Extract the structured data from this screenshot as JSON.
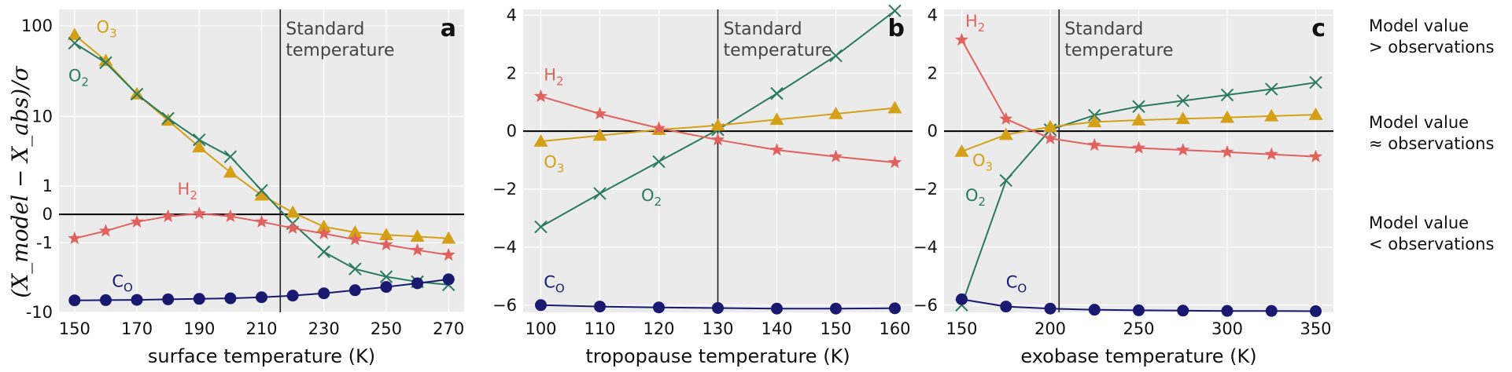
{
  "colors": {
    "H2": "#e0625f",
    "O3": "#d4a017",
    "O2": "#2a7a5e",
    "CO": "#191970",
    "background": "#ebebeb",
    "grid": "#ffffff"
  },
  "ylabel": "(X_model − X_abs)/σ",
  "reference_line_label": [
    "Standard",
    "temperature"
  ],
  "side_notes": [
    {
      "lines": [
        "Model value",
        ">  observations"
      ]
    },
    {
      "lines": [
        "Model value",
        "≈ observations"
      ]
    },
    {
      "lines": [
        "Model value",
        "< observations"
      ]
    }
  ],
  "chart_data": [
    {
      "panel": "a",
      "type": "line",
      "xlabel": "surface temperature (K)",
      "xlim": [
        145,
        275
      ],
      "xticks": [
        150,
        170,
        190,
        210,
        230,
        250,
        270
      ],
      "yscale": "symlog",
      "ylim": [
        -10,
        150
      ],
      "yticks": [
        {
          "v": 100,
          "label": "100"
        },
        {
          "v": 10,
          "label": "10"
        },
        {
          "v": 1,
          "label": "1"
        },
        {
          "v": 0,
          "label": "0"
        },
        {
          "v": -1,
          "label": "-1"
        },
        {
          "v": -10,
          "label": "-10"
        }
      ],
      "reference_x": 216,
      "series": [
        {
          "name": "O3",
          "marker": "triangle",
          "x": [
            150,
            160,
            170,
            180,
            190,
            200,
            210,
            220,
            230,
            240,
            250,
            260,
            270
          ],
          "y": [
            80,
            42,
            18,
            9,
            4.2,
            1.8,
            0.6,
            0.05,
            -0.35,
            -0.55,
            -0.65,
            -0.72,
            -0.8
          ]
        },
        {
          "name": "O2",
          "marker": "cross",
          "x": [
            150,
            160,
            170,
            180,
            190,
            200,
            210,
            220,
            230,
            240,
            250,
            260,
            270
          ],
          "y": [
            65,
            40,
            18,
            9.5,
            5.2,
            3.1,
            0.8,
            -0.25,
            -1.5,
            -2.8,
            -3.6,
            -4.2,
            -4.6
          ]
        },
        {
          "name": "H2",
          "marker": "star",
          "x": [
            150,
            160,
            170,
            180,
            190,
            200,
            210,
            220,
            230,
            240,
            250,
            260,
            270
          ],
          "y": [
            -0.8,
            -0.5,
            -0.2,
            -0.05,
            0.02,
            -0.05,
            -0.2,
            -0.4,
            -0.6,
            -0.85,
            -1.1,
            -1.4,
            -1.7
          ]
        },
        {
          "name": "CO",
          "marker": "circle",
          "x": [
            150,
            160,
            170,
            180,
            190,
            200,
            210,
            220,
            230,
            240,
            250,
            260,
            270
          ],
          "y": [
            -7.2,
            -7.15,
            -7.1,
            -7.0,
            -6.9,
            -6.8,
            -6.6,
            -6.3,
            -5.9,
            -5.4,
            -4.9,
            -4.4,
            -3.9
          ]
        }
      ],
      "labels": [
        {
          "text": "O3",
          "series": "O3",
          "x": 157,
          "y": 85
        },
        {
          "text": "O2",
          "series": "O2",
          "x": 148,
          "y": 25
        },
        {
          "text": "H2",
          "series": "H2",
          "x": 183,
          "y": 0.62
        },
        {
          "text": "CO",
          "series": "CO",
          "x": 162,
          "y": -4.9
        }
      ]
    },
    {
      "panel": "b",
      "type": "line",
      "xlabel": "tropopause temperature (K)",
      "xlim": [
        97,
        163
      ],
      "xticks": [
        100,
        110,
        120,
        130,
        140,
        150,
        160
      ],
      "yscale": "linear",
      "ylim": [
        -6.25,
        4.2
      ],
      "yticks": [
        {
          "v": 4,
          "label": "4"
        },
        {
          "v": 2,
          "label": "2"
        },
        {
          "v": 0,
          "label": "0"
        },
        {
          "v": -2,
          "label": "−2"
        },
        {
          "v": -4,
          "label": "−4"
        },
        {
          "v": -6,
          "label": "−6"
        }
      ],
      "reference_x": 130,
      "series": [
        {
          "name": "O2",
          "marker": "cross",
          "x": [
            100,
            110,
            120,
            130,
            140,
            150,
            160
          ],
          "y": [
            -3.3,
            -2.15,
            -1.05,
            0.05,
            1.3,
            2.6,
            4.15
          ]
        },
        {
          "name": "O3",
          "marker": "triangle",
          "x": [
            100,
            110,
            120,
            130,
            140,
            150,
            160
          ],
          "y": [
            -0.35,
            -0.15,
            0.05,
            0.2,
            0.4,
            0.6,
            0.8
          ]
        },
        {
          "name": "H2",
          "marker": "star",
          "x": [
            100,
            110,
            120,
            130,
            140,
            150,
            160
          ],
          "y": [
            1.2,
            0.6,
            0.1,
            -0.3,
            -0.65,
            -0.88,
            -1.08
          ]
        },
        {
          "name": "CO",
          "marker": "circle",
          "x": [
            100,
            110,
            120,
            130,
            140,
            150,
            160
          ],
          "y": [
            -6.0,
            -6.05,
            -6.08,
            -6.1,
            -6.12,
            -6.12,
            -6.11
          ]
        }
      ],
      "labels": [
        {
          "text": "H2",
          "series": "H2",
          "x": 100.5,
          "y": 1.75
        },
        {
          "text": "O3",
          "series": "O3",
          "x": 100.5,
          "y": -1.25
        },
        {
          "text": "O2",
          "series": "O2",
          "x": 117,
          "y": -2.4
        },
        {
          "text": "CO",
          "series": "CO",
          "x": 100.5,
          "y": -5.4
        }
      ]
    },
    {
      "panel": "c",
      "type": "line",
      "xlabel": "exobase temperature (K)",
      "xlim": [
        140,
        360
      ],
      "xticks": [
        150,
        200,
        250,
        300,
        350
      ],
      "yscale": "linear",
      "ylim": [
        -6.25,
        4.2
      ],
      "yticks": [
        {
          "v": 4,
          "label": "4"
        },
        {
          "v": 2,
          "label": "2"
        },
        {
          "v": 0,
          "label": "0"
        },
        {
          "v": -2,
          "label": "−2"
        },
        {
          "v": -4,
          "label": "−4"
        },
        {
          "v": -6,
          "label": "−6"
        }
      ],
      "reference_x": 205,
      "series": [
        {
          "name": "O2",
          "marker": "cross",
          "x": [
            150,
            175,
            200,
            225,
            250,
            275,
            300,
            325,
            350
          ],
          "y": [
            -6.0,
            -1.7,
            0.05,
            0.55,
            0.85,
            1.05,
            1.25,
            1.45,
            1.68
          ]
        },
        {
          "name": "O3",
          "marker": "triangle",
          "x": [
            150,
            175,
            200,
            225,
            250,
            275,
            300,
            325,
            350
          ],
          "y": [
            -0.7,
            -0.12,
            0.15,
            0.32,
            0.38,
            0.43,
            0.47,
            0.52,
            0.57
          ]
        },
        {
          "name": "H2",
          "marker": "star",
          "x": [
            150,
            175,
            200,
            225,
            250,
            275,
            300,
            325,
            350
          ],
          "y": [
            3.15,
            0.42,
            -0.25,
            -0.48,
            -0.58,
            -0.65,
            -0.72,
            -0.8,
            -0.88
          ]
        },
        {
          "name": "CO",
          "marker": "circle",
          "x": [
            150,
            175,
            200,
            225,
            250,
            275,
            300,
            325,
            350
          ],
          "y": [
            -5.8,
            -6.05,
            -6.12,
            -6.16,
            -6.18,
            -6.19,
            -6.2,
            -6.2,
            -6.21
          ]
        }
      ],
      "labels": [
        {
          "text": "H2",
          "series": "H2",
          "x": 152,
          "y": 3.6
        },
        {
          "text": "O3",
          "series": "O3",
          "x": 156,
          "y": -1.2
        },
        {
          "text": "O2",
          "series": "O2",
          "x": 152,
          "y": -2.4
        },
        {
          "text": "CO",
          "series": "CO",
          "x": 175,
          "y": -5.4
        }
      ]
    }
  ]
}
